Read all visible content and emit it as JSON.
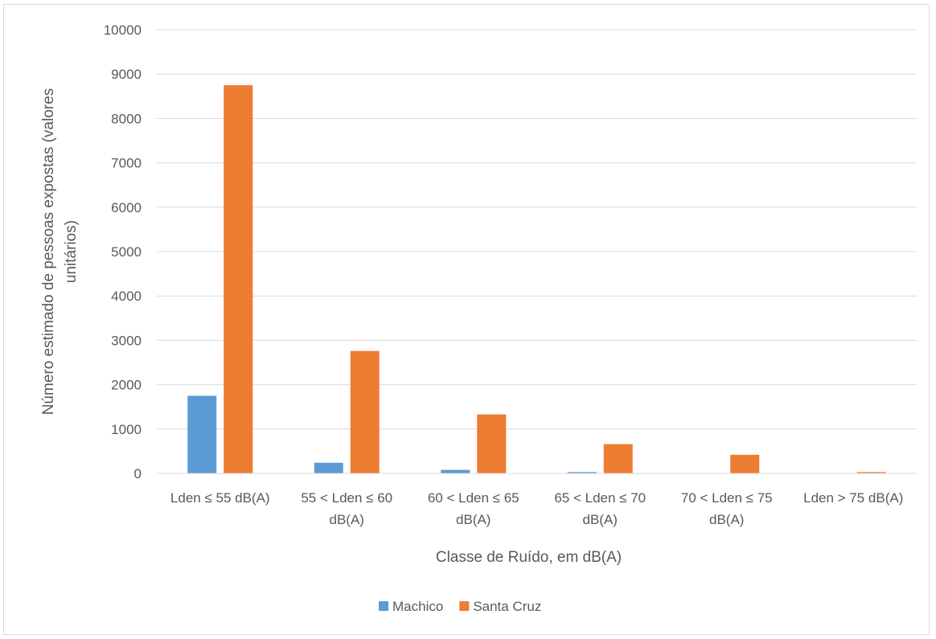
{
  "chart_data": {
    "type": "bar",
    "categories": [
      [
        "Lden ≤ 55 dB(A)"
      ],
      [
        "55 < Lden ≤ 60",
        "dB(A)"
      ],
      [
        "60 < Lden ≤ 65",
        "dB(A)"
      ],
      [
        "65 < Lden ≤ 70",
        "dB(A)"
      ],
      [
        "70 < Lden ≤ 75",
        "dB(A)"
      ],
      [
        "Lden > 75 dB(A)"
      ]
    ],
    "series": [
      {
        "name": "Machico",
        "color": "#5b9bd5",
        "values": [
          1750,
          240,
          80,
          30,
          0,
          0
        ]
      },
      {
        "name": "Santa Cruz",
        "color": "#ed7d31",
        "values": [
          8750,
          2760,
          1330,
          660,
          420,
          30
        ]
      }
    ],
    "title": "",
    "xlabel": "Classe de Ruído, em dB(A)",
    "ylabel": [
      "Número estimado de pessoas expostas (valores",
      "unitários)"
    ],
    "ylim": [
      0,
      10000
    ],
    "yticks": [
      0,
      1000,
      2000,
      3000,
      4000,
      5000,
      6000,
      7000,
      8000,
      9000,
      10000
    ],
    "grid": true,
    "legend_position": "bottom"
  }
}
